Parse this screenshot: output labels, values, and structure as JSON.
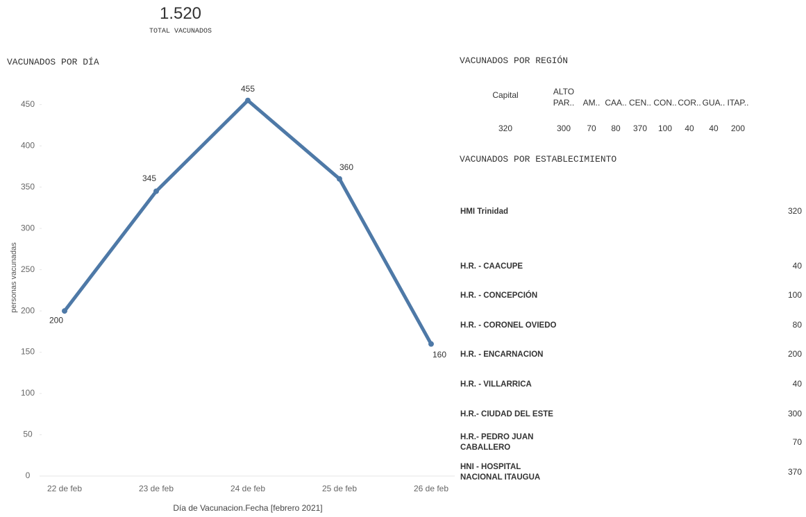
{
  "kpi": {
    "value": "1.520",
    "label": "TOTAL VACUNADOS"
  },
  "chart_data": {
    "type": "line",
    "title": "VACUNADOS POR DÍA",
    "y_label": "personas vacunadas",
    "x_label": "Día de Vacunacion.Fecha [febrero 2021]",
    "categories": [
      "22 de feb",
      "23 de feb",
      "24 de feb",
      "25 de feb",
      "26 de feb"
    ],
    "series": [
      {
        "name": "personas vacunadas",
        "color": "#4e79a7",
        "values": [
          200,
          345,
          455,
          360,
          160
        ]
      }
    ],
    "ylim": [
      0,
      480
    ],
    "yticks": [
      0,
      50,
      100,
      150,
      200,
      250,
      300,
      350,
      400,
      450
    ],
    "grid": false
  },
  "region_table": {
    "title": "VACUNADOS POR REGIÓN",
    "headers": [
      "Capital",
      "ALTO PAR..",
      "AM..",
      "CAA..",
      "CEN..",
      "CON..",
      "COR..",
      "GUA..",
      "ITAP.."
    ],
    "values": [
      "320",
      "300",
      "70",
      "80",
      "370",
      "100",
      "40",
      "40",
      "200"
    ]
  },
  "establishment_table": {
    "title": "VACUNADOS POR ESTABLECIMIENTO",
    "rows": [
      [
        "HMI Trinidad",
        "320"
      ],
      [
        "H.R. - CAACUPE",
        "40"
      ],
      [
        "H.R. - CONCEPCIÓN",
        "100"
      ],
      [
        "H.R. - CORONEL OVIEDO",
        "80"
      ],
      [
        "H.R. - ENCARNACION",
        "200"
      ],
      [
        "H.R. - VILLARRICA",
        "40"
      ],
      [
        "H.R.- CIUDAD DEL ESTE",
        "300"
      ],
      [
        "H.R.- PEDRO JUAN CABALLERO",
        "70"
      ],
      [
        "HNI - HOSPITAL NACIONAL ITAUGUA",
        "370"
      ]
    ]
  }
}
